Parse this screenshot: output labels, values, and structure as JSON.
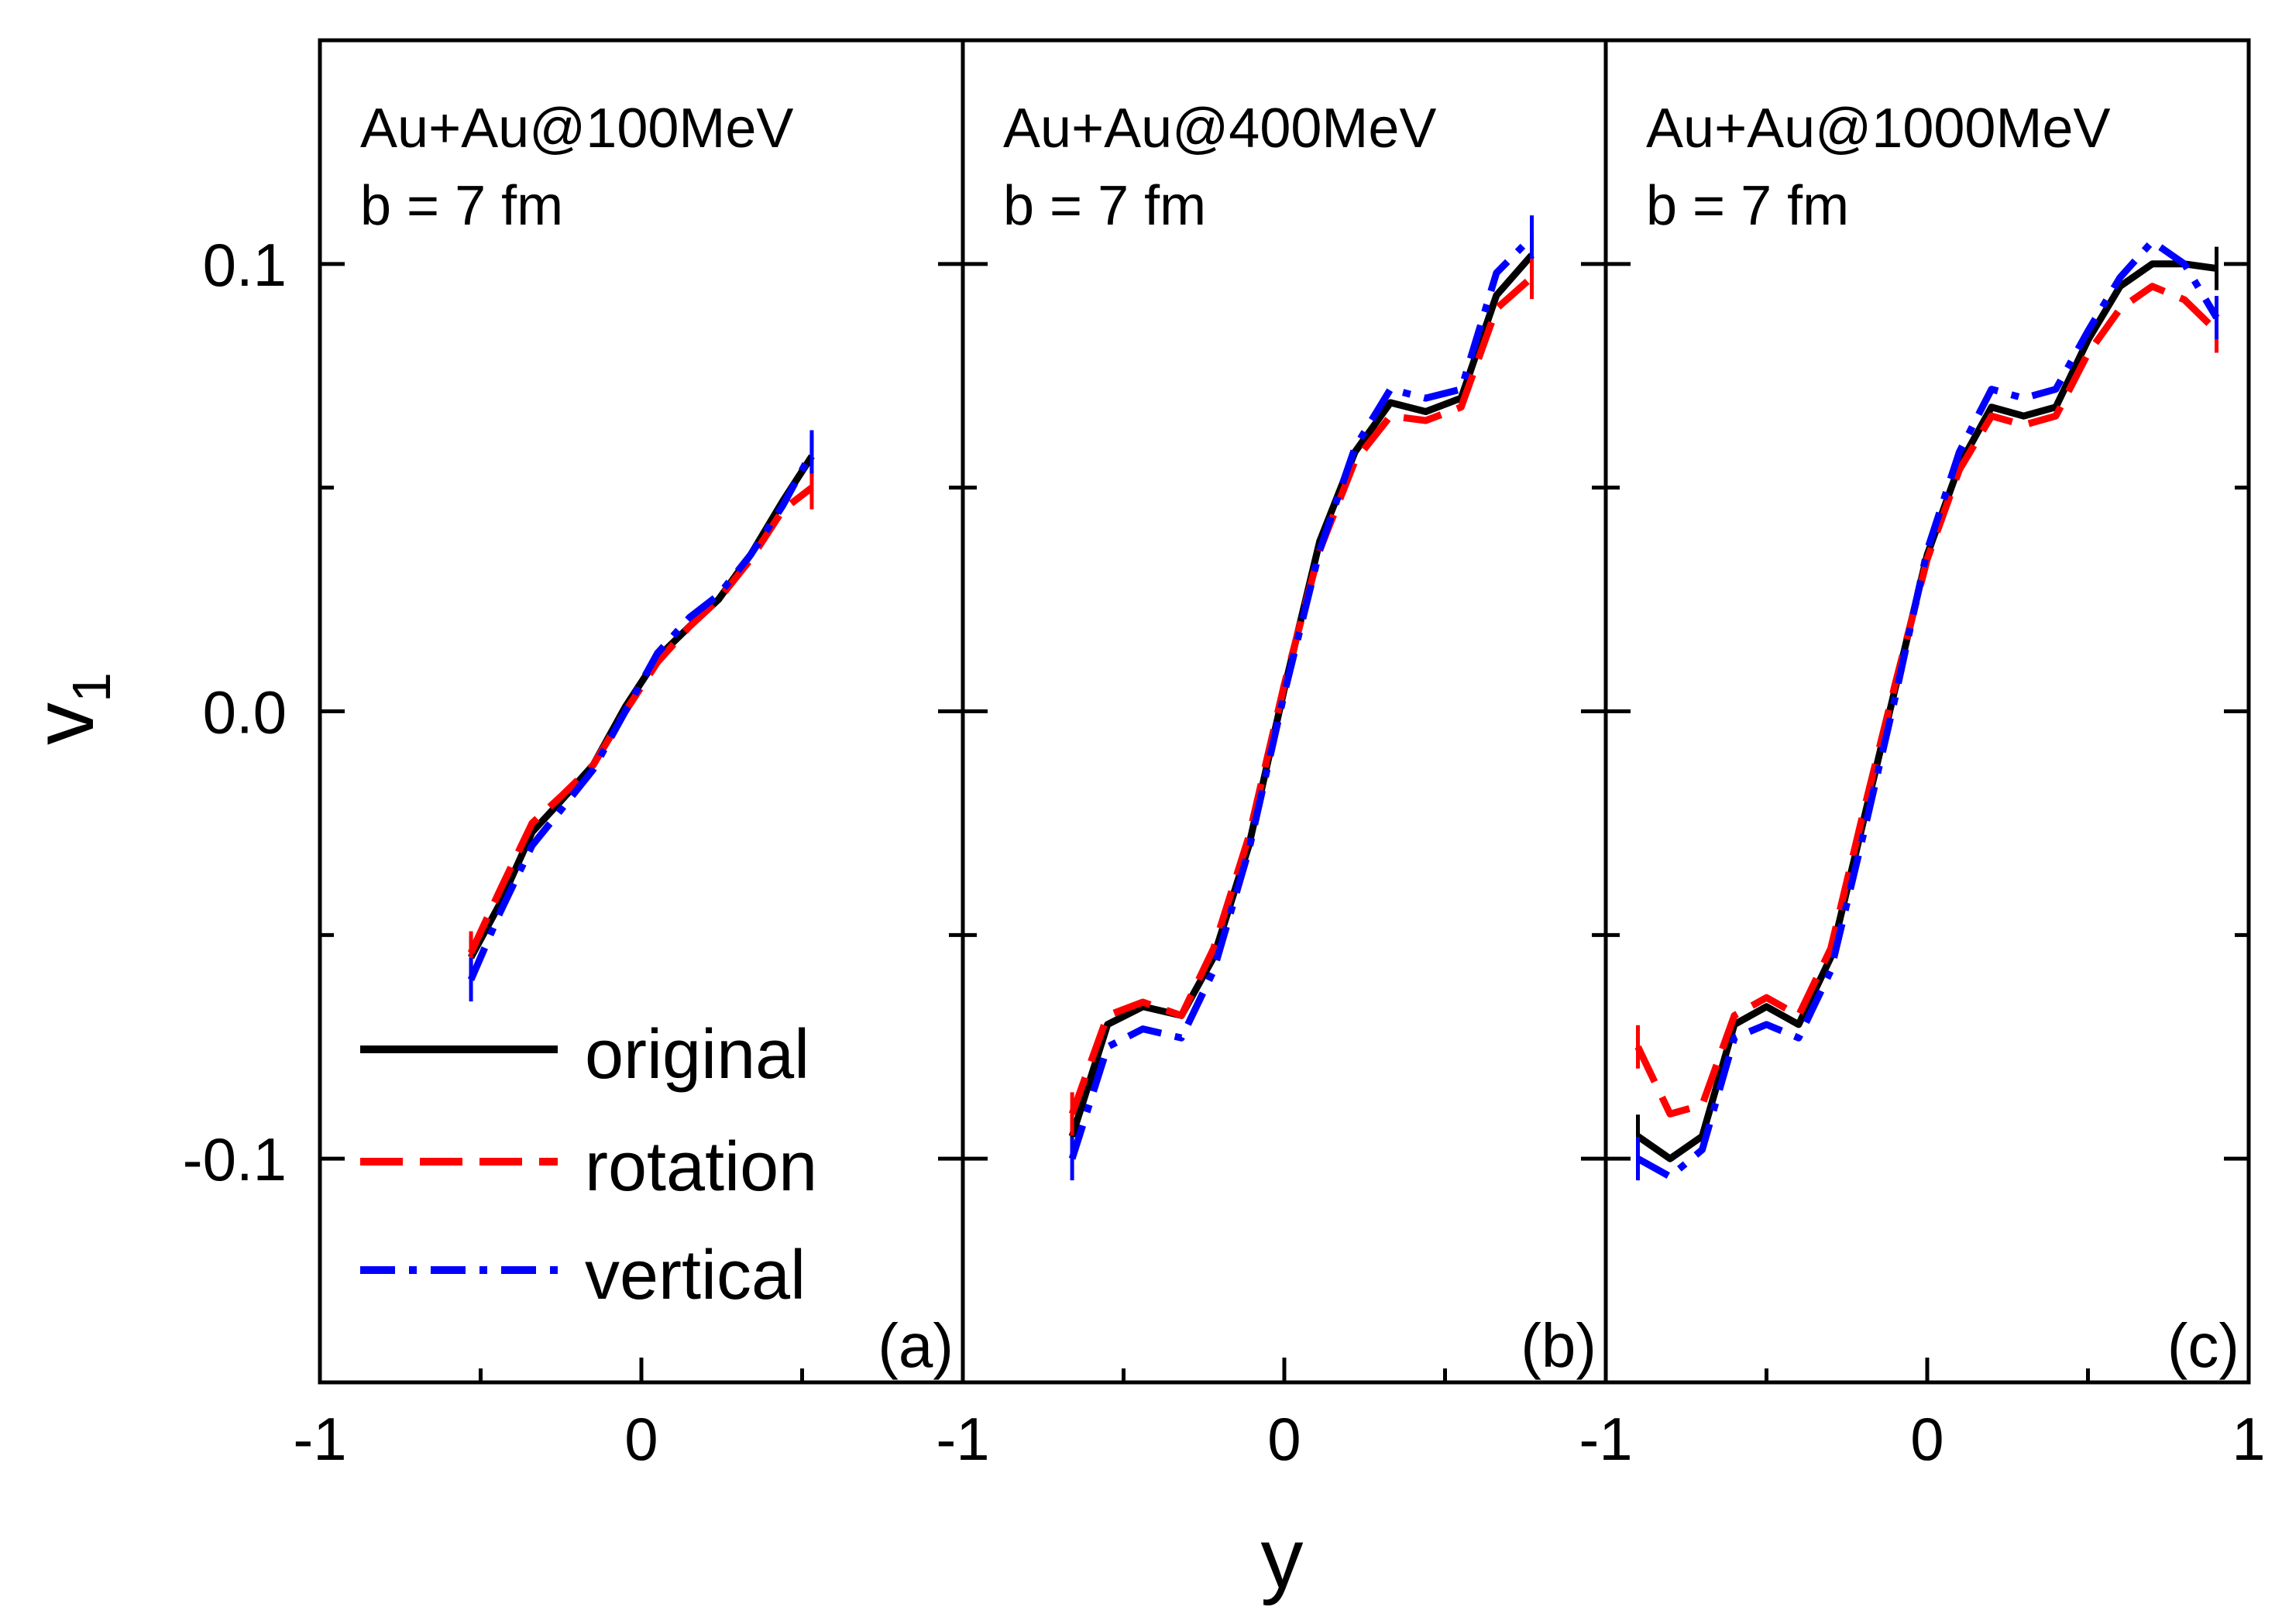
{
  "chart_data": {
    "type": "line",
    "xlabel": "y",
    "ylabel": "v",
    "ylabel_subscript": "1",
    "xlim": [
      -1,
      1
    ],
    "ylim": [
      -0.15,
      0.15
    ],
    "y_ticks": [
      {
        "value": 0.1,
        "label": "0.1"
      },
      {
        "value": 0.0,
        "label": "0.0"
      },
      {
        "value": -0.1,
        "label": "-0.1"
      }
    ],
    "y_minor_ticks": [
      0.05,
      -0.05
    ],
    "x_ticks": [
      {
        "value": -1,
        "label": "-1"
      },
      {
        "value": 0,
        "label": "0"
      },
      {
        "value": 1,
        "label": "1"
      }
    ],
    "x_minor_ticks": [
      -0.5,
      0.5
    ],
    "legend": {
      "placement": "lower-left of panel (a)",
      "entries": [
        {
          "label": "original",
          "color": "#000000",
          "style": "solid"
        },
        {
          "label": "rotation",
          "color": "#ff0000",
          "style": "dashed"
        },
        {
          "label": "vertical",
          "color": "#0000ff",
          "style": "dash-dot"
        }
      ]
    },
    "panels": [
      {
        "letter": "(a)",
        "title_line1": "Au+Au@100MeV",
        "title_line2": "b = 7 fm",
        "series": [
          {
            "name": "original",
            "x": [
              -0.53,
              -0.44,
              -0.34,
              -0.25,
              -0.15,
              -0.05,
              0.05,
              0.15,
              0.24,
              0.34,
              0.44,
              0.53
            ],
            "y": [
              -0.055,
              -0.043,
              -0.027,
              -0.02,
              -0.012,
              0.001,
              0.012,
              0.019,
              0.025,
              0.035,
              0.047,
              0.057
            ]
          },
          {
            "name": "rotation",
            "x": [
              -0.53,
              -0.44,
              -0.34,
              -0.25,
              -0.15,
              -0.05,
              0.05,
              0.15,
              0.24,
              0.34,
              0.44,
              0.53
            ],
            "y": [
              -0.054,
              -0.04,
              -0.025,
              -0.019,
              -0.012,
              0.0,
              0.011,
              0.019,
              0.025,
              0.034,
              0.045,
              0.05
            ]
          },
          {
            "name": "vertical",
            "x": [
              -0.53,
              -0.44,
              -0.34,
              -0.25,
              -0.15,
              -0.05,
              0.05,
              0.15,
              0.24,
              0.34,
              0.44,
              0.53
            ],
            "y": [
              -0.06,
              -0.045,
              -0.03,
              -0.022,
              -0.013,
              0.0,
              0.013,
              0.021,
              0.026,
              0.035,
              0.046,
              0.058
            ]
          }
        ]
      },
      {
        "letter": "(b)",
        "title_line1": "Au+Au@400MeV",
        "title_line2": "b = 7 fm",
        "series": [
          {
            "name": "original",
            "x": [
              -0.66,
              -0.55,
              -0.44,
              -0.32,
              -0.22,
              -0.11,
              0.0,
              0.11,
              0.22,
              0.33,
              0.44,
              0.55,
              0.66,
              0.77
            ],
            "y": [
              -0.095,
              -0.07,
              -0.066,
              -0.068,
              -0.055,
              -0.03,
              0.005,
              0.038,
              0.058,
              0.069,
              0.067,
              0.07,
              0.093,
              0.102
            ]
          },
          {
            "name": "rotation",
            "x": [
              -0.66,
              -0.55,
              -0.44,
              -0.32,
              -0.22,
              -0.11,
              0.0,
              0.11,
              0.22,
              0.33,
              0.44,
              0.55,
              0.66,
              0.77
            ],
            "y": [
              -0.09,
              -0.068,
              -0.065,
              -0.068,
              -0.053,
              -0.028,
              0.006,
              0.036,
              0.056,
              0.066,
              0.065,
              0.068,
              0.09,
              0.097
            ]
          },
          {
            "name": "vertical",
            "x": [
              -0.66,
              -0.55,
              -0.44,
              -0.32,
              -0.22,
              -0.11,
              0.0,
              0.11,
              0.22,
              0.33,
              0.44,
              0.55,
              0.66,
              0.77
            ],
            "y": [
              -0.1,
              -0.075,
              -0.071,
              -0.073,
              -0.058,
              -0.031,
              0.004,
              0.036,
              0.059,
              0.072,
              0.07,
              0.072,
              0.098,
              0.106
            ]
          }
        ]
      },
      {
        "letter": "(c)",
        "title_line1": "Au+Au@1000MeV",
        "title_line2": "b = 7 fm",
        "series": [
          {
            "name": "original",
            "x": [
              -0.9,
              -0.8,
              -0.7,
              -0.6,
              -0.5,
              -0.4,
              -0.3,
              -0.2,
              -0.1,
              0.0,
              0.1,
              0.2,
              0.3,
              0.4,
              0.5,
              0.6,
              0.7,
              0.8,
              0.9
            ],
            "y": [
              -0.095,
              -0.1,
              -0.095,
              -0.07,
              -0.066,
              -0.07,
              -0.055,
              -0.025,
              0.005,
              0.035,
              0.055,
              0.068,
              0.066,
              0.068,
              0.083,
              0.095,
              0.1,
              0.1,
              0.099
            ]
          },
          {
            "name": "rotation",
            "x": [
              -0.9,
              -0.8,
              -0.7,
              -0.6,
              -0.5,
              -0.4,
              -0.3,
              -0.2,
              -0.1,
              0.0,
              0.1,
              0.2,
              0.3,
              0.4,
              0.5,
              0.6,
              0.7,
              0.8,
              0.9
            ],
            "y": [
              -0.075,
              -0.09,
              -0.088,
              -0.068,
              -0.064,
              -0.068,
              -0.053,
              -0.023,
              0.006,
              0.034,
              0.054,
              0.066,
              0.064,
              0.066,
              0.08,
              0.09,
              0.095,
              0.092,
              0.085
            ]
          },
          {
            "name": "vertical",
            "x": [
              -0.9,
              -0.8,
              -0.7,
              -0.6,
              -0.5,
              -0.4,
              -0.3,
              -0.2,
              -0.1,
              0.0,
              0.1,
              0.2,
              0.3,
              0.4,
              0.5,
              0.6,
              0.7,
              0.8,
              0.9
            ],
            "y": [
              -0.1,
              -0.104,
              -0.098,
              -0.073,
              -0.07,
              -0.073,
              -0.058,
              -0.028,
              0.003,
              0.036,
              0.058,
              0.072,
              0.07,
              0.072,
              0.085,
              0.097,
              0.105,
              0.1,
              0.088
            ]
          }
        ]
      }
    ]
  }
}
